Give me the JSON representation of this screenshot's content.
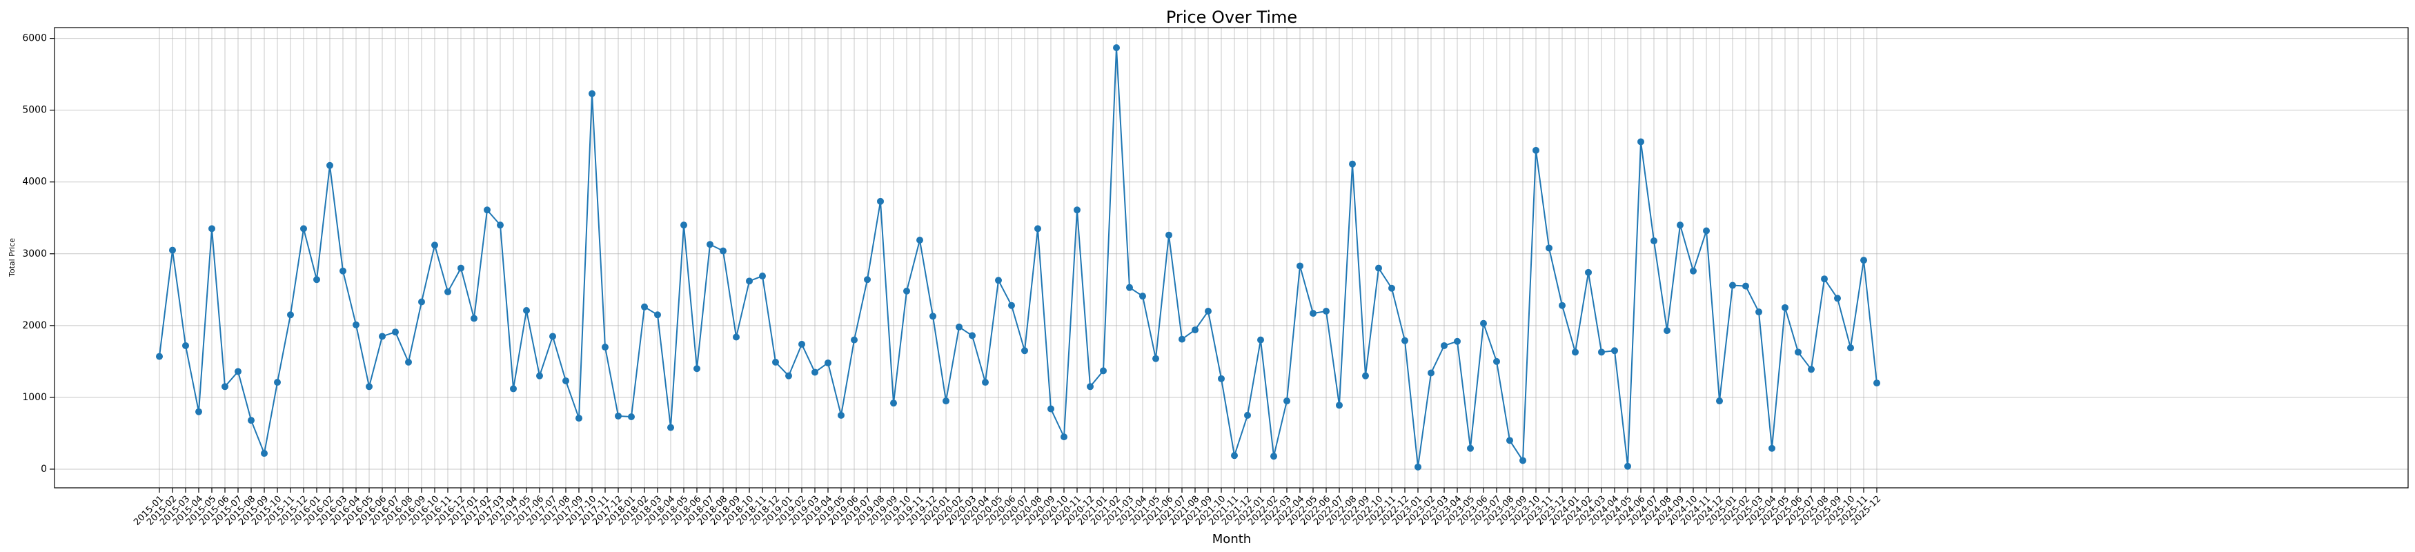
{
  "chart_data": {
    "type": "line",
    "title": "Price Over Time",
    "x_label": "Month",
    "y_label": "Total Price",
    "categories": [
      "2015-01",
      "2015-02",
      "2015-03",
      "2015-04",
      "2015-05",
      "2015-06",
      "2015-07",
      "2015-08",
      "2015-09",
      "2015-10",
      "2015-11",
      "2015-12",
      "2016-01",
      "2016-02",
      "2016-03",
      "2016-04",
      "2016-05",
      "2016-06",
      "2016-07",
      "2016-08",
      "2016-09",
      "2016-10",
      "2016-11",
      "2016-12",
      "2017-01",
      "2017-02",
      "2017-03",
      "2017-04",
      "2017-05",
      "2017-06",
      "2017-07",
      "2017-08",
      "2017-09",
      "2017-10",
      "2017-11",
      "2017-12",
      "2018-01",
      "2018-02",
      "2018-03",
      "2018-04",
      "2018-05",
      "2018-06",
      "2018-07",
      "2018-08",
      "2018-09",
      "2018-10",
      "2018-11",
      "2018-12",
      "2019-01",
      "2019-02",
      "2019-03",
      "2019-04",
      "2019-05",
      "2019-06",
      "2019-07",
      "2019-08",
      "2019-09",
      "2019-10",
      "2019-11",
      "2019-12",
      "2020-01",
      "2020-02",
      "2020-03",
      "2020-04",
      "2020-05",
      "2020-06",
      "2020-07",
      "2020-08",
      "2020-09",
      "2020-10",
      "2020-11",
      "2020-12",
      "2021-01",
      "2021-02",
      "2021-03",
      "2021-04",
      "2021-05",
      "2021-06",
      "2021-07",
      "2021-08",
      "2021-09",
      "2021-10",
      "2021-11",
      "2021-12",
      "2022-01",
      "2022-02",
      "2022-03",
      "2022-04",
      "2022-05",
      "2022-06",
      "2022-07",
      "2022-08",
      "2022-09",
      "2022-10",
      "2022-11",
      "2022-12",
      "2023-01",
      "2023-02",
      "2023-03",
      "2023-04",
      "2023-05",
      "2023-06",
      "2023-07",
      "2023-08",
      "2023-09",
      "2023-10",
      "2023-11",
      "2023-12",
      "2024-01",
      "2024-02",
      "2024-03",
      "2024-04",
      "2024-05",
      "2024-06",
      "2024-07",
      "2024-08",
      "2024-09",
      "2024-10",
      "2024-11",
      "2024-12",
      "2025-01",
      "2025-02",
      "2025-03",
      "2025-04",
      "2025-05",
      "2025-06",
      "2025-07",
      "2025-08",
      "2025-09",
      "2025-10",
      "2025-11",
      "2025-12"
    ],
    "series": [
      {
        "name": "Total Price",
        "color": "#1f77b4",
        "values": [
          1570,
          3050,
          1720,
          800,
          3350,
          1150,
          1360,
          680,
          220,
          1210,
          2150,
          3350,
          2640,
          4230,
          2760,
          2010,
          1150,
          1850,
          1910,
          1490,
          2330,
          3120,
          2470,
          2800,
          2100,
          3610,
          3400,
          1120,
          2210,
          1300,
          1850,
          1230,
          710,
          5230,
          1700,
          740,
          730,
          2260,
          2150,
          580,
          3400,
          1400,
          3130,
          3040,
          1840,
          2620,
          2690,
          1490,
          1300,
          1740,
          1350,
          1480,
          750,
          1800,
          2640,
          3730,
          920,
          2480,
          3190,
          2130,
          950,
          1980,
          1860,
          1210,
          2630,
          2280,
          1650,
          3350,
          840,
          450,
          3610,
          1150,
          1370,
          5870,
          2530,
          2410,
          1540,
          3260,
          1810,
          1940,
          2200,
          1260,
          190,
          750,
          1800,
          180,
          950,
          2830,
          2170,
          2200,
          890,
          4250,
          1300,
          2800,
          2520,
          1790,
          30,
          1340,
          1720,
          1780,
          290,
          2030,
          1500,
          400,
          120,
          4440,
          3080,
          2280,
          1630,
          2740,
          1630,
          1650,
          40,
          4560,
          3180,
          1930,
          3400,
          2760,
          3320,
          950,
          2560,
          2550,
          2190,
          290,
          2250,
          1630,
          1390,
          2650,
          2380,
          1690,
          2910,
          1200
        ]
      }
    ],
    "ylim": [
      -260,
      6150
    ],
    "yticks": [
      0,
      1000,
      2000,
      3000,
      4000,
      5000,
      6000
    ],
    "grid": true
  }
}
